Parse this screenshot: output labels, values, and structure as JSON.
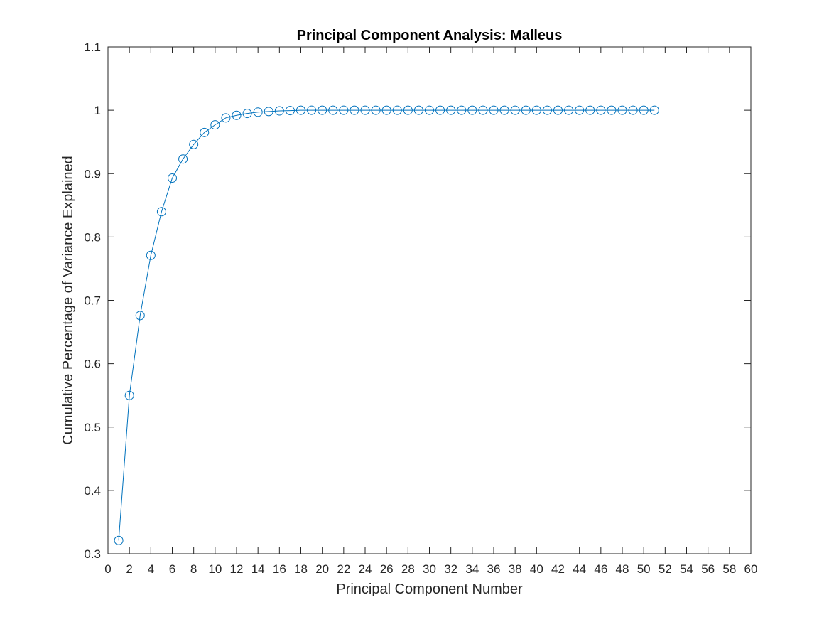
{
  "chart_data": {
    "type": "line",
    "title": "Principal Component Analysis: Malleus",
    "xlabel": "Principal Component Number",
    "ylabel": "Cumulative Percentage of Variance Explained",
    "xlim": [
      0,
      60
    ],
    "ylim": [
      0.3,
      1.1
    ],
    "xticks": [
      "0",
      "2",
      "4",
      "6",
      "8",
      "10",
      "12",
      "14",
      "16",
      "18",
      "20",
      "22",
      "24",
      "26",
      "28",
      "30",
      "32",
      "34",
      "36",
      "38",
      "40",
      "42",
      "44",
      "46",
      "48",
      "50",
      "52",
      "54",
      "56",
      "58",
      "60"
    ],
    "yticks": [
      "0.3",
      "0.4",
      "0.5",
      "0.6",
      "0.7",
      "0.8",
      "0.9",
      "1",
      "1.1"
    ],
    "grid": false,
    "marker": "circle",
    "series": [
      {
        "color": "#0072BD",
        "x": [
          1,
          2,
          3,
          4,
          5,
          6,
          7,
          8,
          9,
          10,
          11,
          12,
          13,
          14,
          15,
          16,
          17,
          18,
          19,
          20,
          21,
          22,
          23,
          24,
          25,
          26,
          27,
          28,
          29,
          30,
          31,
          32,
          33,
          34,
          35,
          36,
          37,
          38,
          39,
          40,
          41,
          42,
          43,
          44,
          45,
          46,
          47,
          48,
          49,
          50,
          51
        ],
        "y": [
          0.321,
          0.55,
          0.676,
          0.771,
          0.84,
          0.893,
          0.923,
          0.946,
          0.965,
          0.977,
          0.988,
          0.992,
          0.995,
          0.997,
          0.998,
          0.999,
          0.9995,
          1,
          1,
          1,
          1,
          1,
          1,
          1,
          1,
          1,
          1,
          1,
          1,
          1,
          1,
          1,
          1,
          1,
          1,
          1,
          1,
          1,
          1,
          1,
          1,
          1,
          1,
          1,
          1,
          1,
          1,
          1,
          1,
          1,
          1
        ]
      }
    ]
  }
}
